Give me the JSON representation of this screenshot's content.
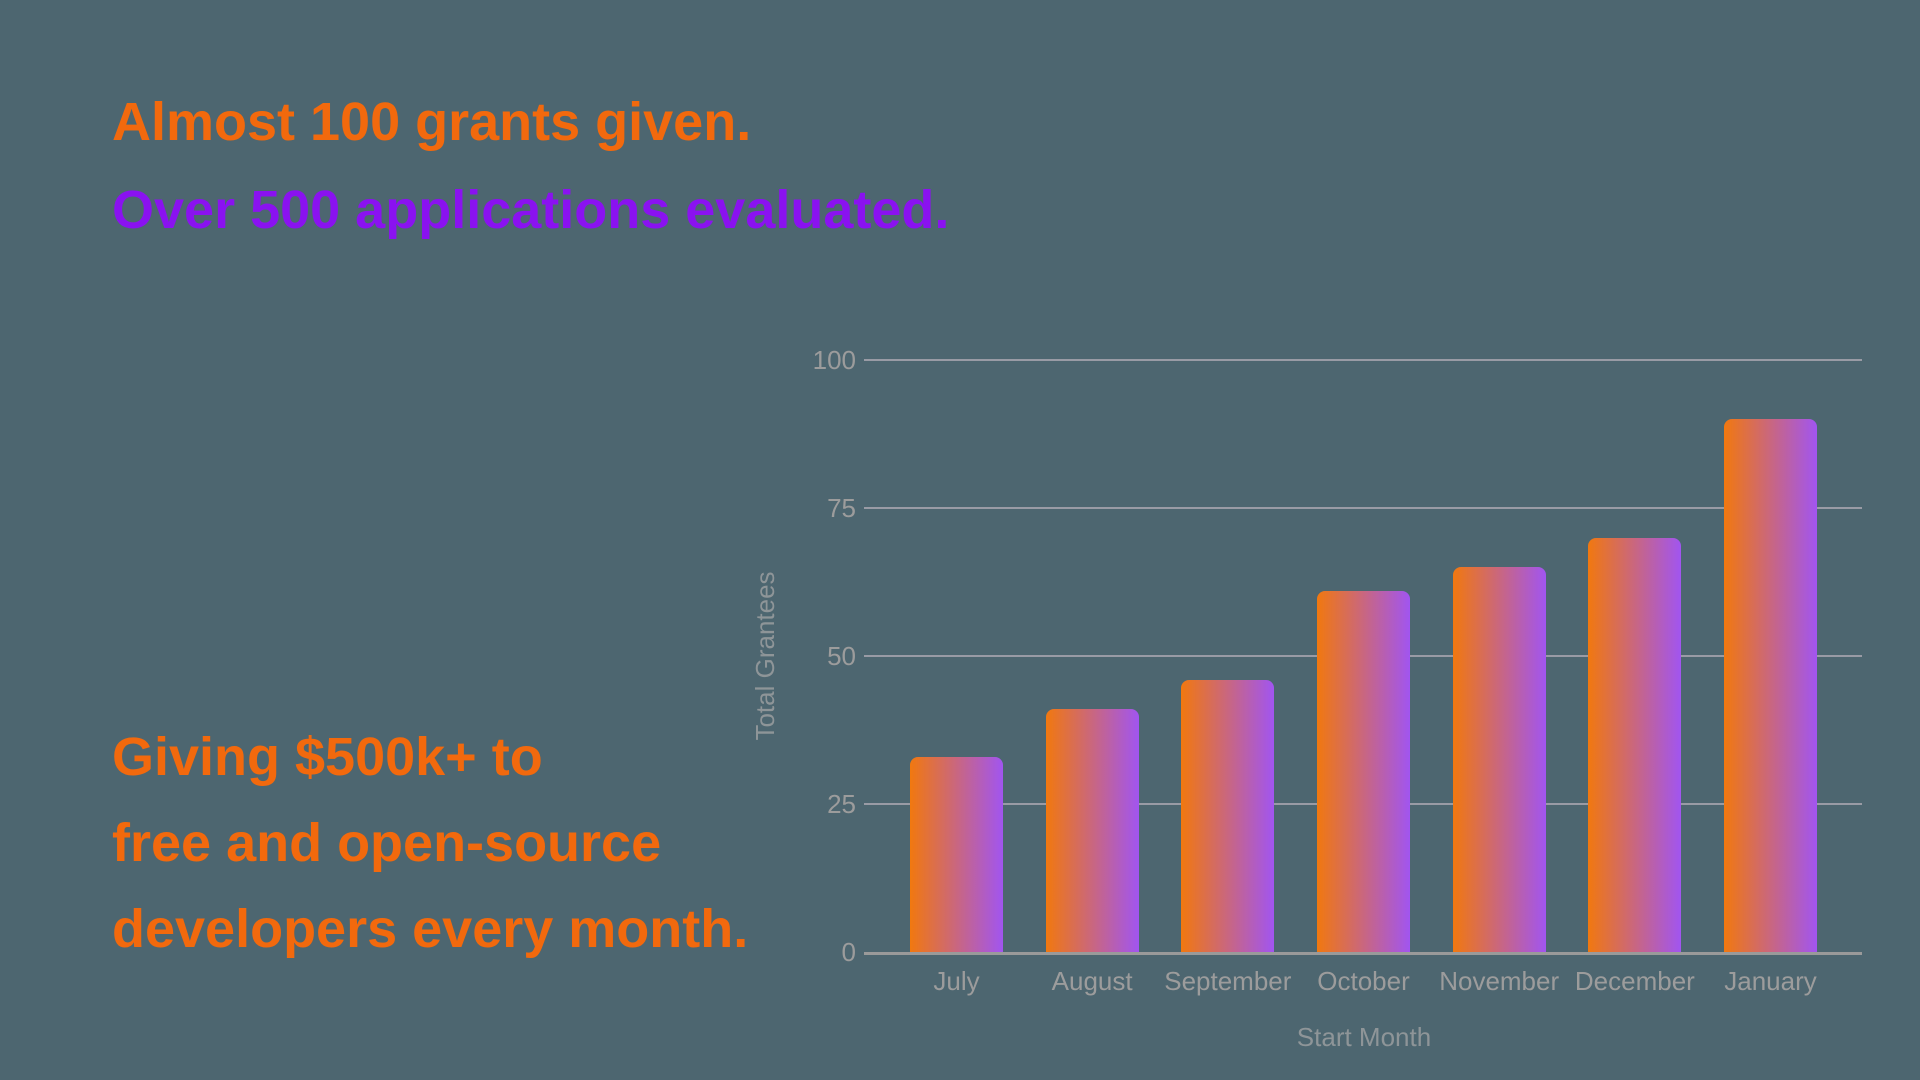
{
  "headline": {
    "line1": "Almost 100 grants given.",
    "line2": "Over 500 applications evaluated."
  },
  "subheadline": {
    "line1": "Giving $500k+ to",
    "line2": "free and open-source",
    "line3": "developers every month."
  },
  "colors": {
    "background": "#4D6670",
    "headline_orange": "#F2690D",
    "headline_purple": "#8A12F0",
    "label_gray": "#9C9C9C",
    "axis_title_gray": "#8E9598",
    "gridline_gray": "#A7A4AE",
    "axis_line_gray": "#9A9A9A",
    "bar_gradient_start": "#F1780F",
    "bar_gradient_end": "#A155F0"
  },
  "chart_data": {
    "type": "bar",
    "title": "",
    "categories": [
      "July",
      "August",
      "September",
      "October",
      "November",
      "December",
      "January"
    ],
    "values": [
      33,
      41,
      46,
      61,
      65,
      70,
      90
    ],
    "xlabel": "Start Month",
    "ylabel": "Total Grantees",
    "ylim": [
      0,
      100
    ],
    "yticks": [
      0,
      25,
      50,
      75,
      100
    ],
    "grid": true,
    "legend": "none",
    "bar_orientation": "vertical",
    "bar_gradient_direction": "left-to-right"
  }
}
